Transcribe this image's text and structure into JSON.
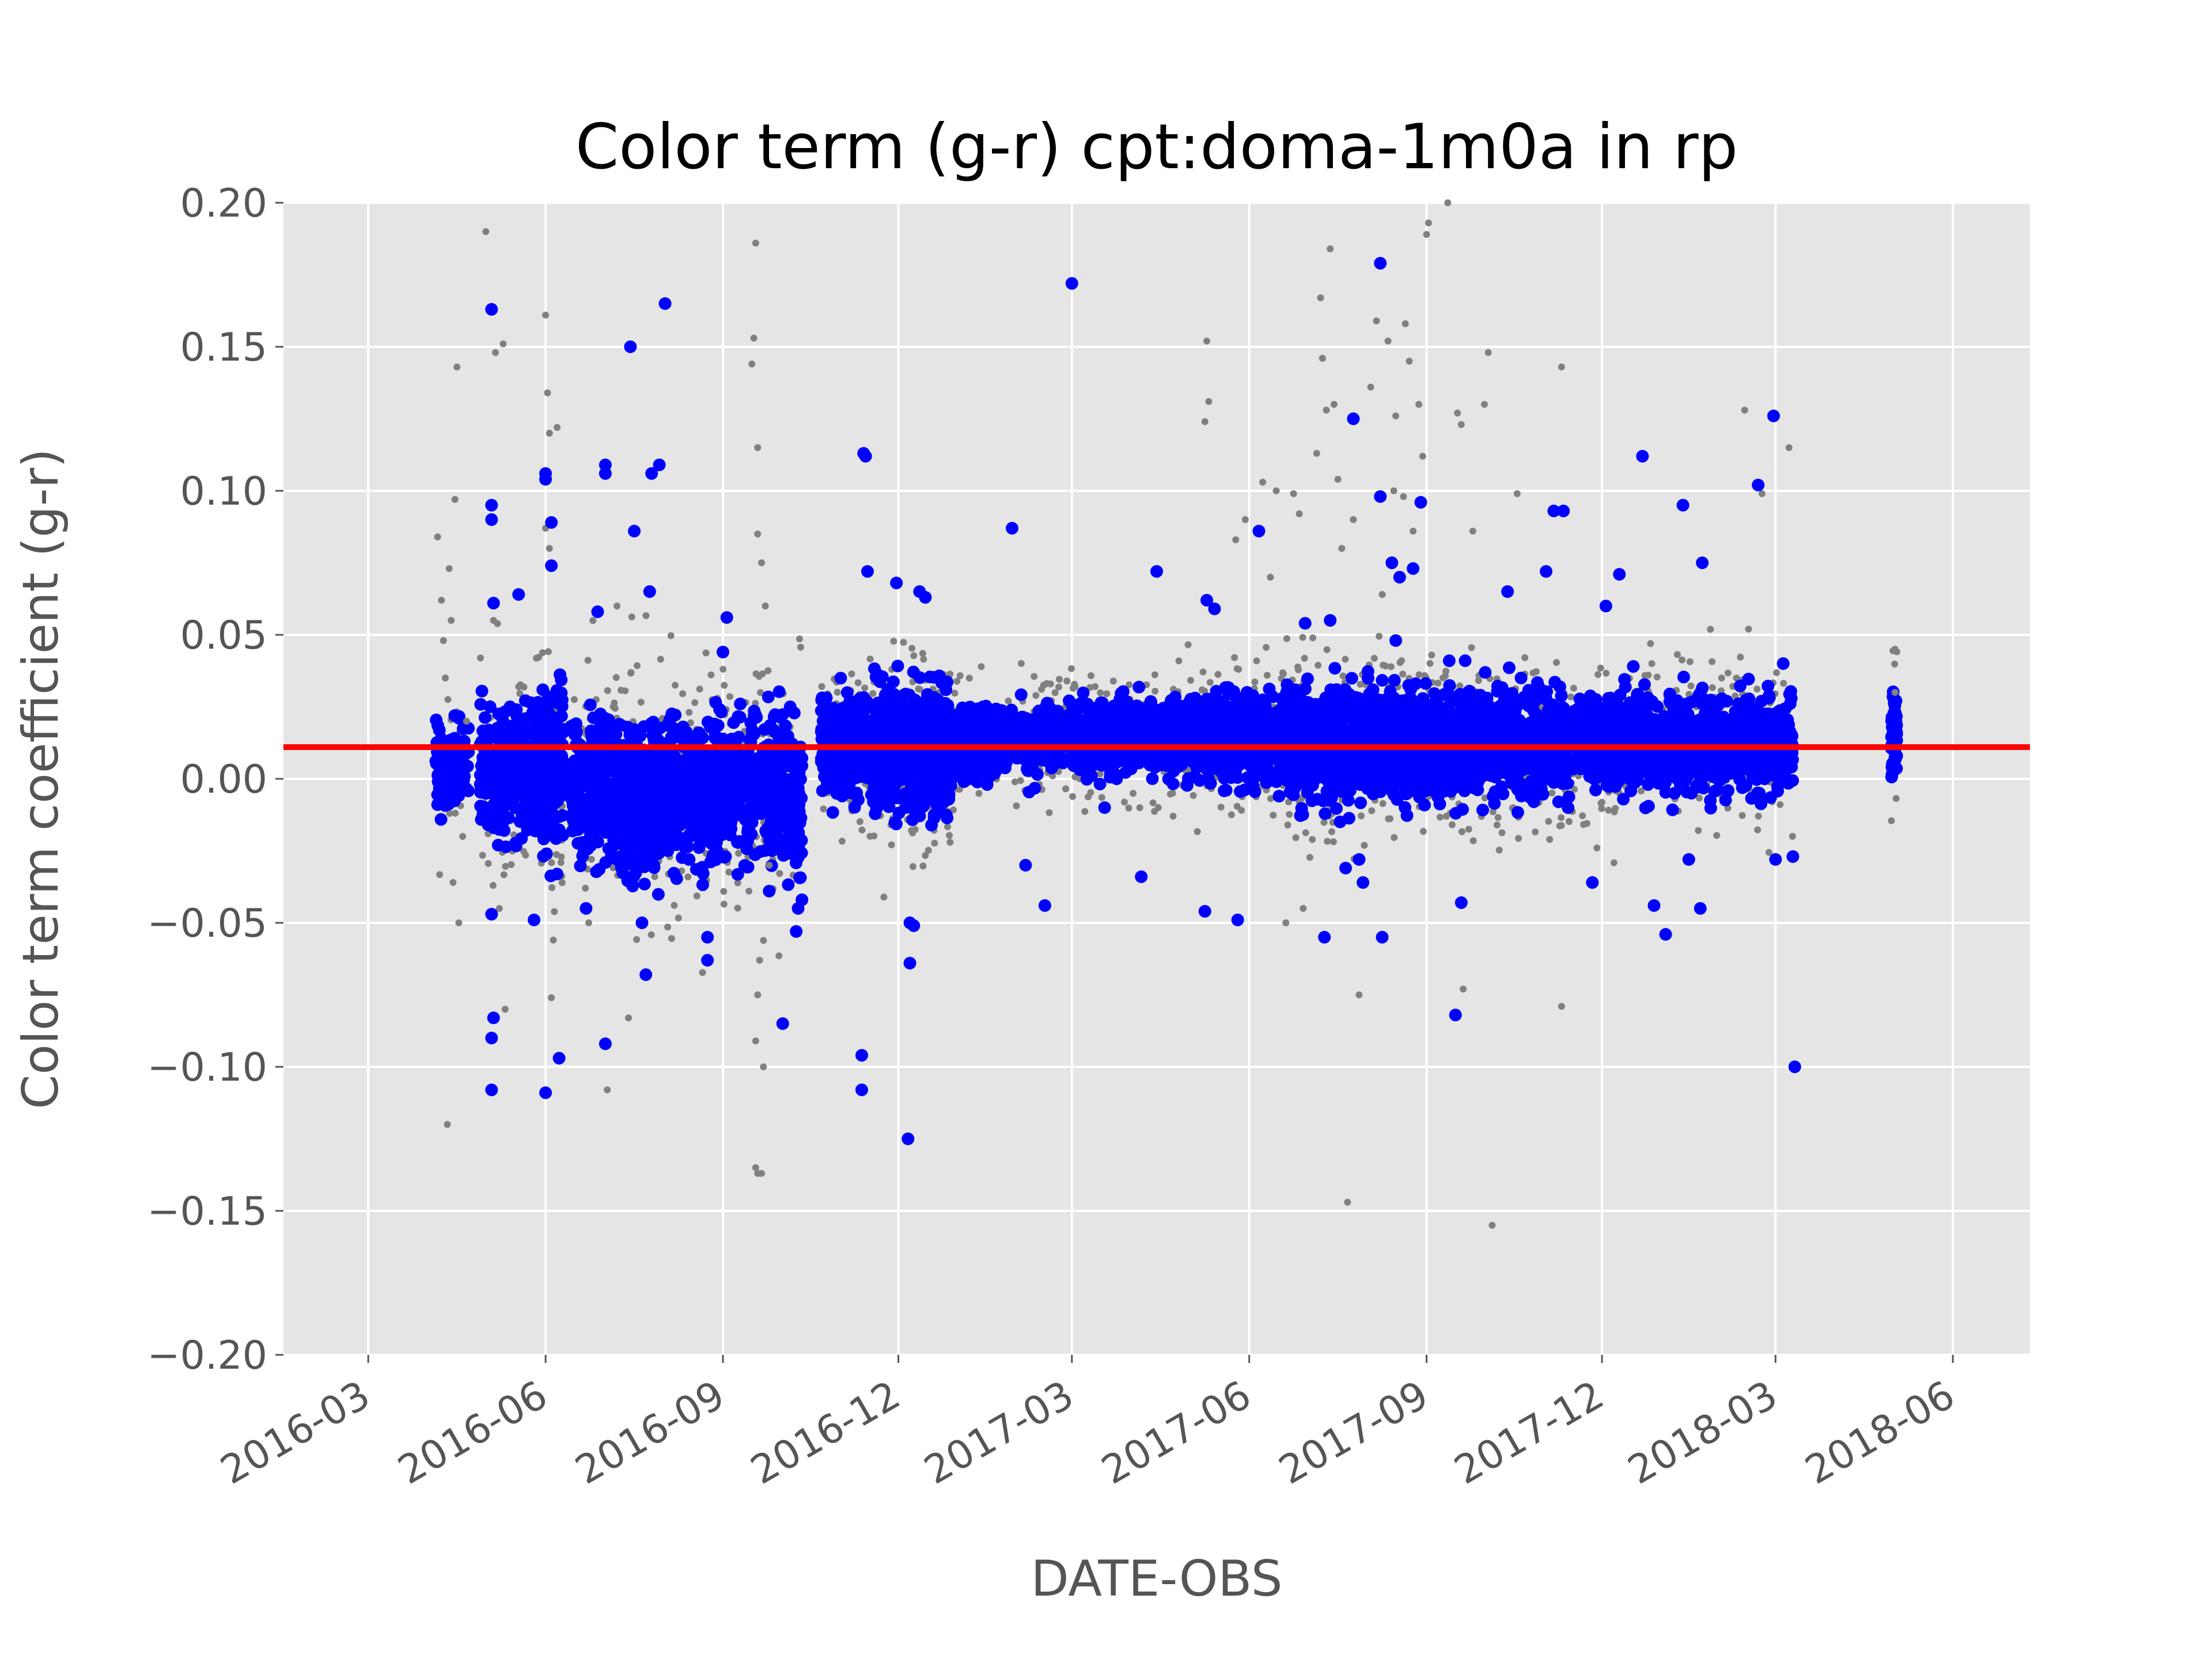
{
  "chart_data": {
    "type": "scatter",
    "title": "Color term (g-r)  cpt:doma-1m0a in rp",
    "xlabel": "DATE-OBS",
    "ylabel": "Color term coefficient (g-r)",
    "x_type": "date",
    "xlim": [
      "2016-01-17",
      "2018-07-11"
    ],
    "ylim": [
      -0.2,
      0.2
    ],
    "x_ticks": [
      "2016-03",
      "2016-06",
      "2016-09",
      "2016-12",
      "2017-03",
      "2017-06",
      "2017-09",
      "2017-12",
      "2018-03",
      "2018-06"
    ],
    "y_ticks": [
      "0.20",
      "0.15",
      "0.10",
      "0.05",
      "0.00",
      "−0.05",
      "−0.10",
      "−0.15",
      "−0.20"
    ],
    "grid": true,
    "background": "#e5e5e5",
    "colors": {
      "rejected": "#808080",
      "accepted": "#0000ff",
      "fit": "#ff0000"
    },
    "reference_line": {
      "y": 0.011
    },
    "series": [
      {
        "marker": "small-dot",
        "color": "#808080",
        "points": [
          [
            "2016-04-06",
            0.084
          ],
          [
            "2016-04-08",
            0.062
          ],
          [
            "2016-04-09",
            0.048
          ],
          [
            "2016-04-10",
            0.035
          ],
          [
            "2016-04-12",
            0.073
          ],
          [
            "2016-04-13",
            0.055
          ],
          [
            "2016-04-15",
            0.097
          ],
          [
            "2016-04-16",
            0.143
          ],
          [
            "2016-04-11",
            -0.12
          ],
          [
            "2016-04-14",
            -0.036
          ],
          [
            "2016-04-17",
            -0.05
          ],
          [
            "2016-04-19",
            -0.02
          ],
          [
            "2016-04-21",
            0.02
          ],
          [
            "2016-05-01",
            0.19
          ],
          [
            "2016-05-06",
            0.148
          ],
          [
            "2016-05-10",
            0.151
          ],
          [
            "2016-05-11",
            -0.08
          ],
          [
            "2016-05-08",
            -0.045
          ],
          [
            "2016-05-05",
            0.055
          ],
          [
            "2016-06-01",
            0.161
          ],
          [
            "2016-06-02",
            0.134
          ],
          [
            "2016-06-03",
            0.12
          ],
          [
            "2016-06-07",
            0.122
          ],
          [
            "2016-06-01",
            0.087
          ],
          [
            "2016-06-04",
            -0.076
          ],
          [
            "2016-06-05",
            -0.056
          ],
          [
            "2016-06-03",
            0.08
          ],
          [
            "2016-07-03",
            -0.108
          ],
          [
            "2016-07-14",
            -0.083
          ],
          [
            "2016-07-08",
            0.06
          ],
          [
            "2016-09-18",
            0.186
          ],
          [
            "2016-09-17",
            0.153
          ],
          [
            "2016-09-16",
            0.144
          ],
          [
            "2016-09-19",
            0.115
          ],
          [
            "2016-09-19",
            0.085
          ],
          [
            "2016-09-21",
            0.075
          ],
          [
            "2016-09-20",
            -0.063
          ],
          [
            "2016-09-19",
            -0.075
          ],
          [
            "2016-09-18",
            -0.091
          ],
          [
            "2016-09-22",
            -0.1
          ],
          [
            "2016-09-18",
            -0.135
          ],
          [
            "2016-09-19",
            -0.137
          ],
          [
            "2016-09-21",
            -0.137
          ],
          [
            "2016-09-23",
            0.06
          ],
          [
            "2016-09-25",
            -0.03
          ],
          [
            "2017-05-10",
            0.152
          ],
          [
            "2017-05-11",
            0.131
          ],
          [
            "2017-05-09",
            0.124
          ],
          [
            "2017-05-25",
            0.083
          ],
          [
            "2017-05-30",
            0.09
          ],
          [
            "2017-06-08",
            0.103
          ],
          [
            "2017-06-15",
            0.1
          ],
          [
            "2017-06-24",
            0.099
          ],
          [
            "2017-06-27",
            0.092
          ],
          [
            "2017-06-20",
            -0.05
          ],
          [
            "2017-06-29",
            -0.045
          ],
          [
            "2017-06-12",
            0.07
          ],
          [
            "2017-07-08",
            0.167
          ],
          [
            "2017-07-09",
            0.146
          ],
          [
            "2017-07-13",
            0.184
          ],
          [
            "2017-07-11",
            0.128
          ],
          [
            "2017-07-15",
            0.13
          ],
          [
            "2017-07-06",
            0.113
          ],
          [
            "2017-07-17",
            0.104
          ],
          [
            "2017-07-22",
            -0.147
          ],
          [
            "2017-07-28",
            -0.075
          ],
          [
            "2017-07-19",
            0.08
          ],
          [
            "2017-07-25",
            0.09
          ],
          [
            "2017-08-03",
            0.136
          ],
          [
            "2017-08-06",
            0.159
          ],
          [
            "2017-08-12",
            0.152
          ],
          [
            "2017-08-16",
            0.126
          ],
          [
            "2017-08-21",
            0.158
          ],
          [
            "2017-08-23",
            0.145
          ],
          [
            "2017-08-28",
            0.13
          ],
          [
            "2017-08-30",
            0.112
          ],
          [
            "2017-08-15",
            0.1
          ],
          [
            "2017-08-20",
            0.098
          ],
          [
            "2017-08-25",
            0.086
          ],
          [
            "2017-08-09",
            0.064
          ],
          [
            "2017-08-19",
            0.041
          ],
          [
            "2017-09-01",
            0.189
          ],
          [
            "2017-09-02",
            0.193
          ],
          [
            "2017-09-12",
            0.2
          ],
          [
            "2017-09-17",
            0.127
          ],
          [
            "2017-09-20",
            -0.073
          ],
          [
            "2017-09-25",
            0.086
          ],
          [
            "2017-10-03",
            0.148
          ],
          [
            "2017-10-01",
            0.13
          ],
          [
            "2017-10-05",
            -0.155
          ],
          [
            "2017-10-18",
            0.099
          ],
          [
            "2017-11-10",
            0.143
          ],
          [
            "2017-11-10",
            -0.079
          ],
          [
            "2017-09-19",
            0.123
          ],
          [
            "2018-02-13",
            0.128
          ],
          [
            "2018-02-22",
            0.099
          ],
          [
            "2018-03-08",
            0.115
          ],
          [
            "2018-02-15",
            0.052
          ],
          [
            "2018-05-02",
            0.045
          ],
          [
            "2018-05-02",
            0.03
          ]
        ]
      },
      {
        "marker": "dot",
        "color": "#0000ff",
        "points": [
          [
            "2016-05-04",
            0.163
          ],
          [
            "2016-05-04",
            0.095
          ],
          [
            "2016-05-04",
            0.09
          ],
          [
            "2016-05-05",
            0.061
          ],
          [
            "2016-05-04",
            -0.047
          ],
          [
            "2016-05-05",
            -0.083
          ],
          [
            "2016-05-04",
            -0.09
          ],
          [
            "2016-05-04",
            -0.108
          ],
          [
            "2016-05-18",
            0.064
          ],
          [
            "2016-06-01",
            0.106
          ],
          [
            "2016-06-01",
            0.104
          ],
          [
            "2016-06-04",
            0.089
          ],
          [
            "2016-06-04",
            0.074
          ],
          [
            "2016-06-01",
            -0.109
          ],
          [
            "2016-06-08",
            -0.097
          ],
          [
            "2016-05-26",
            -0.049
          ],
          [
            "2016-07-02",
            0.109
          ],
          [
            "2016-07-02",
            0.106
          ],
          [
            "2016-06-28",
            0.058
          ],
          [
            "2016-07-02",
            -0.092
          ],
          [
            "2016-06-22",
            -0.045
          ],
          [
            "2016-07-15",
            0.15
          ],
          [
            "2016-07-17",
            0.086
          ],
          [
            "2016-07-26",
            0.106
          ],
          [
            "2016-07-30",
            0.109
          ],
          [
            "2016-07-25",
            0.065
          ],
          [
            "2016-08-02",
            0.165
          ],
          [
            "2016-07-23",
            -0.068
          ],
          [
            "2016-07-21",
            -0.05
          ],
          [
            "2016-08-24",
            -0.055
          ],
          [
            "2016-08-24",
            -0.063
          ],
          [
            "2016-09-01",
            0.044
          ],
          [
            "2016-09-03",
            0.056
          ],
          [
            "2016-09-10",
            0.026
          ],
          [
            "2016-09-25",
            -0.039
          ],
          [
            "2016-10-02",
            -0.085
          ],
          [
            "2016-10-10",
            -0.045
          ],
          [
            "2016-10-09",
            -0.053
          ],
          [
            "2016-10-12",
            -0.042
          ],
          [
            "2016-11-13",
            0.113
          ],
          [
            "2016-11-14",
            0.112
          ],
          [
            "2016-11-12",
            -0.096
          ],
          [
            "2016-11-12",
            -0.108
          ],
          [
            "2016-11-15",
            0.072
          ],
          [
            "2016-12-06",
            -0.125
          ],
          [
            "2016-12-07",
            -0.064
          ],
          [
            "2016-12-07",
            -0.05
          ],
          [
            "2016-12-09",
            -0.051
          ],
          [
            "2016-11-30",
            0.068
          ],
          [
            "2016-12-12",
            0.065
          ],
          [
            "2016-12-15",
            0.063
          ],
          [
            "2017-01-29",
            0.087
          ],
          [
            "2017-03-01",
            0.172
          ],
          [
            "2017-02-15",
            -0.044
          ],
          [
            "2017-02-05",
            -0.03
          ],
          [
            "2017-03-18",
            -0.01
          ],
          [
            "2017-04-06",
            -0.034
          ],
          [
            "2017-04-14",
            0.072
          ],
          [
            "2017-05-09",
            -0.046
          ],
          [
            "2017-05-26",
            -0.049
          ],
          [
            "2017-05-10",
            0.062
          ],
          [
            "2017-05-14",
            0.059
          ],
          [
            "2017-06-06",
            0.086
          ],
          [
            "2017-06-30",
            0.054
          ],
          [
            "2017-07-10",
            -0.055
          ],
          [
            "2017-07-13",
            0.055
          ],
          [
            "2017-07-21",
            -0.031
          ],
          [
            "2017-07-25",
            0.125
          ],
          [
            "2017-07-28",
            -0.028
          ],
          [
            "2017-07-30",
            -0.036
          ],
          [
            "2017-08-08",
            0.179
          ],
          [
            "2017-08-08",
            0.098
          ],
          [
            "2017-08-09",
            -0.055
          ],
          [
            "2017-08-14",
            0.075
          ],
          [
            "2017-08-16",
            0.048
          ],
          [
            "2017-08-18",
            0.07
          ],
          [
            "2017-08-25",
            0.073
          ],
          [
            "2017-08-29",
            0.096
          ],
          [
            "2017-09-16",
            -0.082
          ],
          [
            "2017-09-19",
            -0.043
          ],
          [
            "2017-09-21",
            0.041
          ],
          [
            "2017-10-13",
            0.065
          ],
          [
            "2017-10-20",
            0.035
          ],
          [
            "2017-11-02",
            0.072
          ],
          [
            "2017-11-06",
            0.093
          ],
          [
            "2017-11-11",
            0.093
          ],
          [
            "2017-11-26",
            -0.036
          ],
          [
            "2017-12-03",
            0.06
          ],
          [
            "2017-12-10",
            0.071
          ],
          [
            "2017-12-22",
            0.112
          ],
          [
            "2017-12-28",
            -0.044
          ],
          [
            "2018-01-03",
            -0.054
          ],
          [
            "2018-01-12",
            0.095
          ],
          [
            "2018-01-22",
            0.075
          ],
          [
            "2018-01-21",
            -0.045
          ],
          [
            "2018-01-15",
            -0.028
          ],
          [
            "2018-02-20",
            0.102
          ],
          [
            "2018-02-28",
            0.126
          ],
          [
            "2018-03-01",
            -0.028
          ],
          [
            "2018-03-05",
            0.04
          ],
          [
            "2018-03-11",
            -0.1
          ],
          [
            "2018-03-10",
            -0.027
          ]
        ]
      }
    ]
  }
}
